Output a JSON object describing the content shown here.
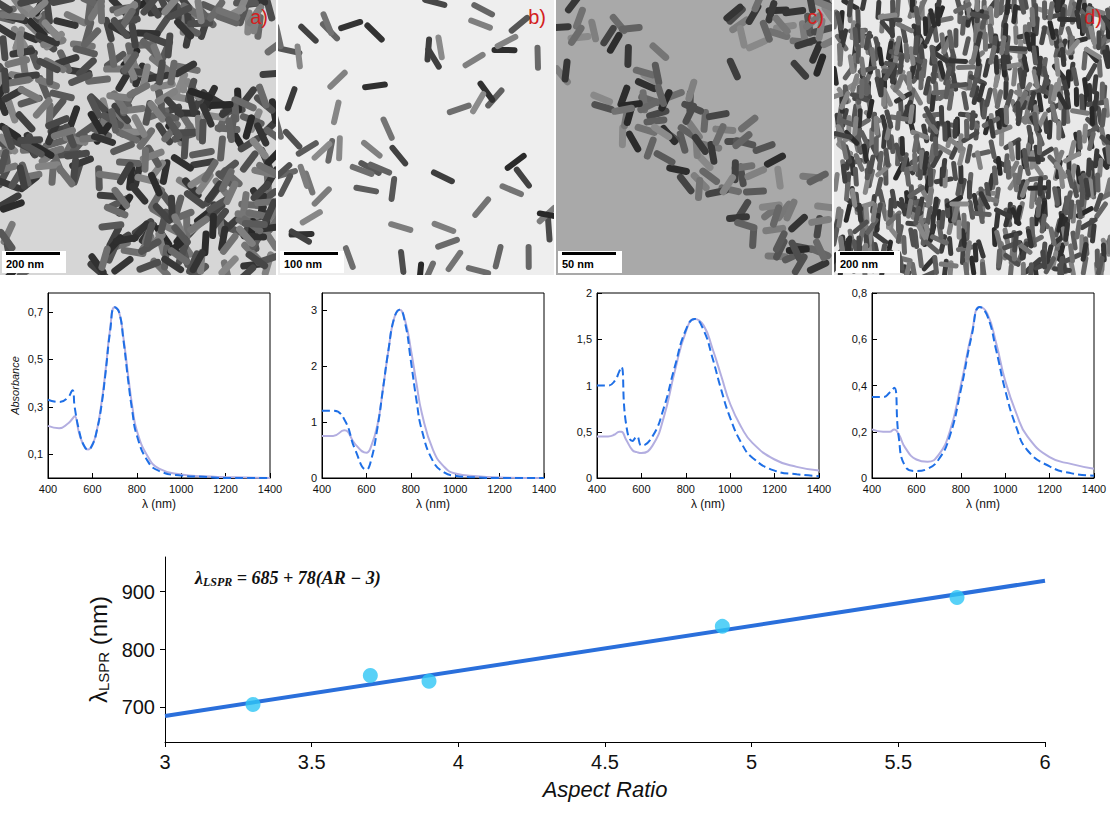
{
  "images": [
    {
      "letter": "a)",
      "scale_bar": "200 nm"
    },
    {
      "letter": "b)",
      "scale_bar": "100 nm"
    },
    {
      "letter": "c)",
      "scale_bar": "50 nm"
    },
    {
      "letter": "d)",
      "scale_bar": "200 nm"
    }
  ],
  "chart_data": [
    {
      "type": "line",
      "ylabel": "Absorbance",
      "xlabel": "λ (nm)",
      "x": [
        400,
        450,
        490,
        510,
        520,
        540,
        560,
        580,
        600,
        620,
        640,
        660,
        680,
        700,
        720,
        740,
        760,
        780,
        800,
        850,
        900,
        1000,
        1100,
        1200,
        1400
      ],
      "series": [
        {
          "color": "#1e6fe6",
          "line_style": "dashed",
          "values": [
            0.33,
            0.32,
            0.34,
            0.37,
            0.3,
            0.2,
            0.14,
            0.12,
            0.14,
            0.2,
            0.3,
            0.45,
            0.62,
            0.72,
            0.7,
            0.58,
            0.42,
            0.28,
            0.18,
            0.07,
            0.03,
            0.01,
            0.005,
            0,
            0
          ]
        },
        {
          "color": "#b3aee0",
          "line_style": "solid",
          "values": [
            0.22,
            0.21,
            0.23,
            0.25,
            0.26,
            0.19,
            0.14,
            0.12,
            0.14,
            0.2,
            0.31,
            0.46,
            0.63,
            0.72,
            0.7,
            0.59,
            0.44,
            0.3,
            0.2,
            0.09,
            0.04,
            0.015,
            0.007,
            0.004,
            0
          ]
        }
      ],
      "xlim": [
        400,
        1400
      ],
      "xticks": [
        400,
        600,
        800,
        1000,
        1200,
        1400
      ],
      "ylim": [
        0,
        0.78
      ],
      "yticks": [
        {
          "value": 0.1,
          "label": "0,1"
        },
        {
          "value": 0.3,
          "label": "0,3"
        },
        {
          "value": 0.5,
          "label": "0,5"
        },
        {
          "value": 0.7,
          "label": "0,7"
        }
      ],
      "grid": false
    },
    {
      "type": "line",
      "xlabel": "λ (nm)",
      "x": [
        400,
        450,
        500,
        550,
        600,
        620,
        650,
        675,
        700,
        725,
        750,
        775,
        800,
        825,
        850,
        900,
        950,
        1000,
        1100,
        1200,
        1400
      ],
      "series": [
        {
          "color": "#1e6fe6",
          "line_style": "dashed",
          "values": [
            1.2,
            1.2,
            1.05,
            0.5,
            0.15,
            0.3,
            0.9,
            1.6,
            2.3,
            2.85,
            3.0,
            2.75,
            2.1,
            1.4,
            0.85,
            0.3,
            0.1,
            0.04,
            0.01,
            0,
            0
          ]
        },
        {
          "color": "#b3aee0",
          "line_style": "solid",
          "values": [
            0.75,
            0.75,
            0.85,
            0.6,
            0.45,
            0.55,
            0.95,
            1.6,
            2.3,
            2.85,
            3.0,
            2.8,
            2.3,
            1.7,
            1.15,
            0.5,
            0.2,
            0.08,
            0.03,
            0.01,
            0
          ]
        }
      ],
      "xlim": [
        400,
        1400
      ],
      "xticks": [
        400,
        600,
        800,
        1000,
        1200,
        1400
      ],
      "ylim": [
        0,
        3.3
      ],
      "yticks": [
        0,
        1,
        2,
        3
      ],
      "grid": false
    },
    {
      "type": "line",
      "xlabel": "λ (nm)",
      "x": [
        400,
        450,
        480,
        500,
        510,
        530,
        560,
        580,
        600,
        650,
        700,
        750,
        800,
        840,
        880,
        920,
        960,
        1000,
        1050,
        1100,
        1200,
        1300,
        1400
      ],
      "series": [
        {
          "color": "#1e6fe6",
          "line_style": "dashed",
          "values": [
            1.0,
            1.0,
            1.05,
            1.15,
            1.2,
            0.6,
            0.4,
            0.45,
            0.35,
            0.45,
            0.75,
            1.2,
            1.6,
            1.72,
            1.6,
            1.3,
            0.95,
            0.65,
            0.38,
            0.22,
            0.08,
            0.04,
            0.02
          ]
        },
        {
          "color": "#b3aee0",
          "line_style": "solid",
          "values": [
            0.45,
            0.45,
            0.47,
            0.5,
            0.5,
            0.42,
            0.3,
            0.28,
            0.27,
            0.35,
            0.65,
            1.15,
            1.58,
            1.72,
            1.65,
            1.4,
            1.1,
            0.8,
            0.55,
            0.38,
            0.2,
            0.12,
            0.08
          ]
        }
      ],
      "xlim": [
        400,
        1400
      ],
      "xticks": [
        400,
        600,
        800,
        1000,
        1200,
        1400
      ],
      "ylim": [
        0,
        2
      ],
      "yticks": [
        0,
        {
          "value": 0.5,
          "label": "0,5"
        },
        1,
        {
          "value": 1.5,
          "label": "1,5"
        },
        2
      ],
      "grid": false
    },
    {
      "type": "line",
      "xlabel": "λ (nm)",
      "x": [
        400,
        450,
        480,
        500,
        520,
        550,
        600,
        650,
        700,
        750,
        800,
        850,
        885,
        920,
        960,
        1000,
        1050,
        1100,
        1200,
        1300,
        1400
      ],
      "series": [
        {
          "color": "#1e6fe6",
          "line_style": "dashed",
          "values": [
            0.35,
            0.35,
            0.37,
            0.39,
            0.18,
            0.05,
            0.03,
            0.04,
            0.08,
            0.18,
            0.38,
            0.62,
            0.74,
            0.7,
            0.55,
            0.38,
            0.22,
            0.12,
            0.05,
            0.02,
            0.01
          ]
        },
        {
          "color": "#b3aee0",
          "line_style": "solid",
          "values": [
            0.21,
            0.2,
            0.2,
            0.21,
            0.19,
            0.13,
            0.08,
            0.07,
            0.1,
            0.2,
            0.4,
            0.63,
            0.74,
            0.71,
            0.58,
            0.42,
            0.28,
            0.18,
            0.09,
            0.06,
            0.04
          ]
        }
      ],
      "xlim": [
        400,
        1400
      ],
      "xticks": [
        400,
        600,
        800,
        1000,
        1200,
        1400
      ],
      "ylim": [
        0,
        0.8
      ],
      "yticks": [
        0,
        {
          "value": 0.2,
          "label": "0,2"
        },
        {
          "value": 0.4,
          "label": "0,4"
        },
        {
          "value": 0.6,
          "label": "0,6"
        },
        {
          "value": 0.8,
          "label": "0,8"
        }
      ],
      "grid": false
    },
    {
      "type": "scatter",
      "annotation": [
        {
          "text": "λ"
        },
        {
          "text": "LSPR",
          "sub": true
        },
        {
          "text": " = 685 + 78(AR − 3)"
        }
      ],
      "xlabel": "Aspect Ratio",
      "ylabel": [
        {
          "text": "λ"
        },
        {
          "text": "LSPR",
          "sub": true
        },
        {
          "text": " (nm)"
        }
      ],
      "series": [
        {
          "type": "line",
          "color": "#2a6fdb",
          "line_style": "solid",
          "x": [
            3,
            6
          ],
          "values": [
            685,
            919
          ]
        },
        {
          "type": "scatter",
          "color": "#2ec5f5",
          "marker": "circle",
          "x": [
            3.3,
            3.7,
            3.9,
            4.9,
            5.7
          ],
          "values": [
            705,
            755,
            745,
            840,
            890
          ]
        }
      ],
      "xlim": [
        3,
        6
      ],
      "xticks": [
        3,
        3.5,
        4,
        4.5,
        5,
        5.5,
        6
      ],
      "ylim": [
        640,
        960
      ],
      "yticks": [
        700,
        800,
        900
      ],
      "grid": false
    }
  ]
}
